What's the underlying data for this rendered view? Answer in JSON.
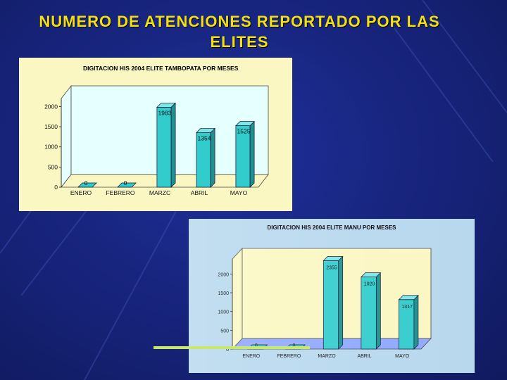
{
  "slide": {
    "title": "NUMERO DE ATENCIONES REPORTADO POR LAS ELITES"
  },
  "colors": {
    "background": "#18257f",
    "title": "#f2e011",
    "bar_face": "#33cccc",
    "bar_side": "#1f8f8f",
    "bar_top": "#7fe6e6",
    "chart1_panel": "#fbf7c2",
    "chart1_plot": "#e6ffff",
    "chart2_panel": "#b8d8ee",
    "chart2_plot": "#fbf7c2",
    "accent_line": "#c7e86a"
  },
  "chart_data": [
    {
      "type": "bar",
      "title": "DIGITACION HIS 2004 ELITE TAMBOPATA POR MESES",
      "categories": [
        "ENERO",
        "FEBRERO",
        "MARZC",
        "ABRIL",
        "MAYO"
      ],
      "values": [
        0,
        0,
        1983,
        1354,
        1525
      ],
      "data_labels": [
        "0",
        "0",
        "1983",
        "1354",
        "1525"
      ],
      "yticks": [
        0,
        500,
        1000,
        1500,
        2000
      ],
      "ylim": [
        0,
        2200
      ],
      "grid": false,
      "legend": "none"
    },
    {
      "type": "bar",
      "title": "DIGITACION HIS 2004 ELITE MANU POR MESES",
      "categories": [
        "ENERO",
        "FEBRERO",
        "MARZO",
        "ABRIL",
        "MAYO"
      ],
      "values": [
        0,
        0,
        2355,
        1920,
        1317
      ],
      "data_labels": [
        "0",
        "0",
        "2355",
        "1920",
        "1317"
      ],
      "yticks": [
        0,
        500,
        1000,
        1500,
        2000
      ],
      "ylim": [
        0,
        2400
      ],
      "grid": false,
      "legend": "none"
    }
  ]
}
